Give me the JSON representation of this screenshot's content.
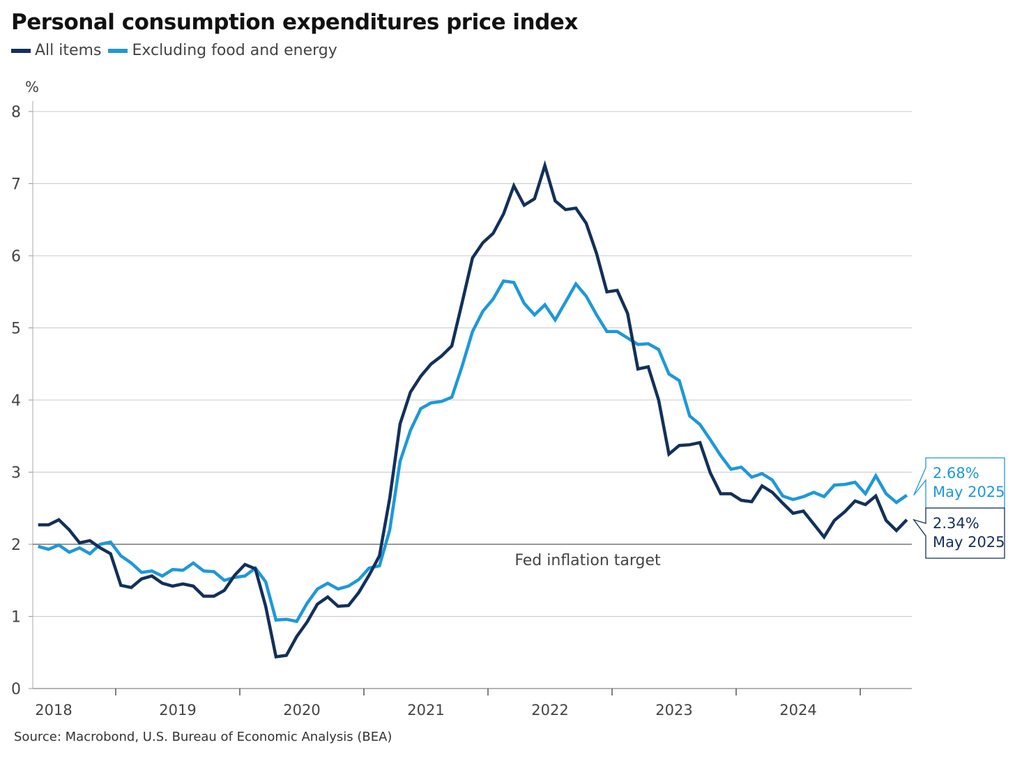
{
  "chart_data": {
    "type": "line",
    "title": "Personal consumption expenditures price index",
    "ylabel": "%",
    "xlabel": "",
    "ylim": [
      0,
      8
    ],
    "yticks": [
      "0",
      "1",
      "2",
      "3",
      "4",
      "5",
      "6",
      "7",
      "8"
    ],
    "xtick_labels": [
      "2018",
      "2019",
      "2020",
      "2021",
      "2022",
      "2023",
      "2024"
    ],
    "x_start": "May 2018",
    "x_end": "May 2025",
    "frequency": "monthly",
    "grid": true,
    "legend_position": "top-left",
    "reference_line": {
      "value": 2,
      "label": "Fed inflation target"
    },
    "series": [
      {
        "name": "All items",
        "color": "#13305a",
        "values": [
          2.27,
          2.27,
          2.34,
          2.2,
          2.02,
          2.05,
          1.95,
          1.87,
          1.43,
          1.4,
          1.52,
          1.56,
          1.46,
          1.42,
          1.45,
          1.42,
          1.28,
          1.28,
          1.36,
          1.57,
          1.72,
          1.66,
          1.14,
          0.44,
          0.46,
          0.72,
          0.92,
          1.17,
          1.27,
          1.14,
          1.15,
          1.33,
          1.57,
          1.84,
          2.64,
          3.67,
          4.11,
          4.33,
          4.5,
          4.61,
          4.75,
          5.35,
          5.97,
          6.18,
          6.31,
          6.58,
          6.97,
          6.7,
          6.79,
          7.25,
          6.76,
          6.64,
          6.66,
          6.45,
          6.03,
          5.5,
          5.52,
          5.2,
          4.43,
          4.46,
          4.0,
          3.25,
          3.37,
          3.38,
          3.41,
          2.99,
          2.7,
          2.7,
          2.61,
          2.59,
          2.81,
          2.72,
          2.57,
          2.43,
          2.46,
          2.28,
          2.1,
          2.33,
          2.45,
          2.6,
          2.55,
          2.67,
          2.33,
          2.19,
          2.34
        ]
      },
      {
        "name": "Excluding food and energy",
        "color": "#1e98d8",
        "values": [
          1.97,
          1.93,
          1.99,
          1.89,
          1.95,
          1.87,
          2.0,
          2.03,
          1.84,
          1.74,
          1.61,
          1.63,
          1.56,
          1.65,
          1.64,
          1.74,
          1.63,
          1.62,
          1.5,
          1.54,
          1.56,
          1.67,
          1.48,
          0.95,
          0.96,
          0.93,
          1.18,
          1.38,
          1.46,
          1.38,
          1.42,
          1.51,
          1.67,
          1.7,
          2.2,
          3.15,
          3.58,
          3.88,
          3.96,
          3.98,
          4.04,
          4.47,
          4.95,
          5.23,
          5.4,
          5.65,
          5.63,
          5.34,
          5.18,
          5.32,
          5.11,
          5.36,
          5.61,
          5.44,
          5.18,
          4.95,
          4.95,
          4.86,
          4.77,
          4.78,
          4.7,
          4.36,
          4.27,
          3.78,
          3.66,
          3.45,
          3.23,
          3.04,
          3.07,
          2.93,
          2.98,
          2.89,
          2.67,
          2.62,
          2.66,
          2.72,
          2.66,
          2.82,
          2.83,
          2.86,
          2.7,
          2.95,
          2.7,
          2.58,
          2.68
        ]
      }
    ],
    "annotations": [
      {
        "value": "2.68%",
        "date": "May 2025",
        "series": "Excluding food and energy"
      },
      {
        "value": "2.34%",
        "date": "May 2025",
        "series": "All items"
      }
    ]
  },
  "source": "Source: Macrobond, U.S. Bureau of Economic Analysis (BEA)"
}
